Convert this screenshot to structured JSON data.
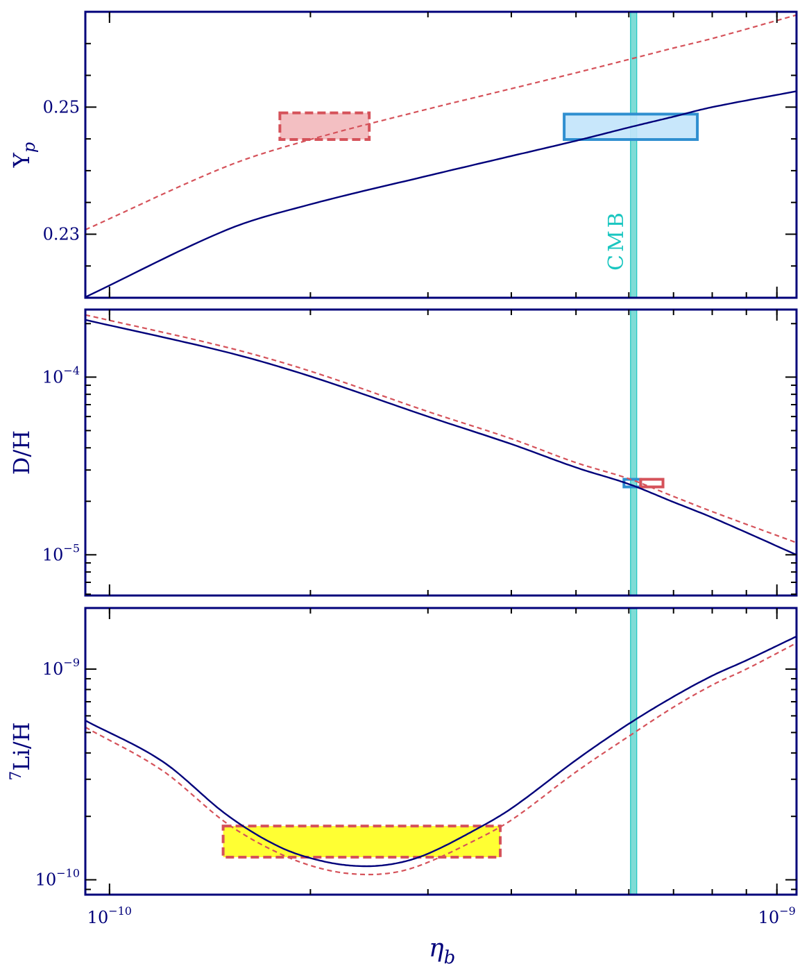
{
  "chart_data": {
    "type": "line",
    "xlabel_main": "η",
    "xlabel_sub": "b",
    "x_scale": "log",
    "xlim": [
      9.2e-11,
      1.07e-09
    ],
    "x_ticks": [
      {
        "value": 1e-10,
        "base": "10",
        "exp": "−10"
      },
      {
        "value": 1e-09,
        "base": "10",
        "exp": "−9"
      }
    ],
    "cmb_label": "CMB",
    "cmb_eta": 6.1e-10,
    "colors": {
      "frame": "#00007a",
      "solid": "#00007a",
      "dashed": "#d5525a",
      "cmb": "#19c6c0",
      "cmb_band": "#7fdcd6",
      "blue_box_fill": "#c2e4fb",
      "blue_box_edge": "#2f8fd0",
      "red_box_fill": "#f3bfc2",
      "red_box_edge": "#d5525a",
      "yellow_box_fill": "#ffff33"
    },
    "panels": [
      {
        "id": "yp",
        "ylabel_main": "Y",
        "ylabel_sub": "p",
        "y_scale": "linear",
        "ylim": [
          0.22,
          0.265
        ],
        "y_ticks": [
          {
            "value": 0.23,
            "label": "0.23"
          },
          {
            "value": 0.25,
            "label": "0.25"
          }
        ],
        "series": [
          {
            "style": "solid",
            "x": [
              9.2e-11,
              1.5e-10,
              2e-10,
              3e-10,
              4e-10,
              5e-10,
              6e-10,
              7e-10,
              8e-10,
              1.07e-09
            ],
            "y": [
              0.2201,
              0.2307,
              0.2347,
              0.2392,
              0.2423,
              0.2447,
              0.2468,
              0.2485,
              0.25,
              0.2525
            ]
          },
          {
            "style": "dashed",
            "x": [
              9.2e-11,
              1.5e-10,
              2e-10,
              3e-10,
              4e-10,
              5e-10,
              6e-10,
              7e-10,
              8e-10,
              1.07e-09
            ],
            "y": [
              0.2307,
              0.2407,
              0.2449,
              0.2497,
              0.2529,
              0.2554,
              0.2575,
              0.2593,
              0.2608,
              0.2645
            ]
          }
        ],
        "boxes": [
          {
            "x": [
              1.8e-10,
              2.45e-10
            ],
            "y": [
              0.2449,
              0.2491
            ],
            "kind": "red"
          },
          {
            "x": [
              4.8e-10,
              7.6e-10
            ],
            "y": [
              0.2449,
              0.2489
            ],
            "kind": "blue"
          }
        ],
        "show_cmb_label": true
      },
      {
        "id": "dh",
        "ylabel": "D/H",
        "y_scale": "log",
        "ylim": [
          5.9e-06,
          0.00024
        ],
        "y_ticks": [
          {
            "value": 0.0001,
            "base": "10",
            "exp": "−4"
          },
          {
            "value": 1e-05,
            "base": "10",
            "exp": "−5"
          }
        ],
        "series": [
          {
            "style": "solid",
            "x": [
              9.2e-11,
              1.5e-10,
              2e-10,
              3e-10,
              4e-10,
              5e-10,
              6e-10,
              7e-10,
              8e-10,
              1.07e-09
            ],
            "y": [
              0.00021,
              0.000138,
              0.000101,
              6e-05,
              4.2e-05,
              3.1e-05,
              2.5e-05,
              1.98e-05,
              1.62e-05,
              1e-05
            ]
          },
          {
            "style": "dashed",
            "x": [
              9.2e-11,
              1.5e-10,
              2e-10,
              3e-10,
              4e-10,
              5e-10,
              6e-10,
              7e-10,
              8e-10,
              1.07e-09
            ],
            "y": [
              0.000224,
              0.000147,
              0.000108,
              6.4e-05,
              4.5e-05,
              3.3e-05,
              2.68e-05,
              2.13e-05,
              1.75e-05,
              1.17e-05
            ]
          }
        ],
        "boxes": [
          {
            "x": [
              5.9e-10,
              6.25e-10
            ],
            "y": [
              2.41e-05,
              2.66e-05
            ],
            "kind": "blue_outline"
          },
          {
            "x": [
              6.25e-10,
              6.75e-10
            ],
            "y": [
              2.41e-05,
              2.66e-05
            ],
            "kind": "red_outline"
          }
        ],
        "show_cmb_label": false
      },
      {
        "id": "li",
        "ylabel_sup": "7",
        "ylabel": "Li/H",
        "y_scale": "log",
        "ylim": [
          8.5e-11,
          1.95e-09
        ],
        "y_ticks": [
          {
            "value": 1e-09,
            "base": "10",
            "exp": "−9"
          },
          {
            "value": 1e-10,
            "base": "10",
            "exp": "−10"
          }
        ],
        "series": [
          {
            "style": "solid",
            "x": [
              9.2e-11,
              1.2e-10,
              1.5e-10,
              1.8e-10,
              2.1e-10,
              2.4e-10,
              2.7e-10,
              3e-10,
              3.5e-10,
              4e-10,
              5e-10,
              6e-10,
              7e-10,
              8e-10,
              9e-10,
              1.07e-09
            ],
            "y": [
              5.7e-10,
              3.65e-10,
              2.03e-10,
              1.43e-10,
              1.22e-10,
              1.16e-10,
              1.2e-10,
              1.33e-10,
              1.7e-10,
              2.18e-10,
              3.7e-10,
              5.5e-10,
              7.4e-10,
              9.3e-10,
              1.1e-09,
              1.43e-09
            ]
          },
          {
            "style": "dashed",
            "x": [
              9.2e-11,
              1.2e-10,
              1.5e-10,
              1.8e-10,
              2.1e-10,
              2.4e-10,
              2.7e-10,
              3e-10,
              3.5e-10,
              4e-10,
              5e-10,
              6e-10,
              7e-10,
              8e-10,
              9e-10,
              1.07e-09
            ],
            "y": [
              5.3e-10,
              3.3e-10,
              1.85e-10,
              1.33e-10,
              1.12e-10,
              1.06e-10,
              1.09e-10,
              1.21e-10,
              1.52e-10,
              1.92e-10,
              3.25e-10,
              4.8e-10,
              6.6e-10,
              8.4e-10,
              1e-09,
              1.33e-09
            ]
          }
        ],
        "boxes": [
          {
            "x": [
              1.48e-10,
              3.85e-10
            ],
            "y": [
              1.28e-10,
              1.8e-10
            ],
            "kind": "yellow"
          }
        ],
        "show_cmb_label": false
      }
    ]
  }
}
